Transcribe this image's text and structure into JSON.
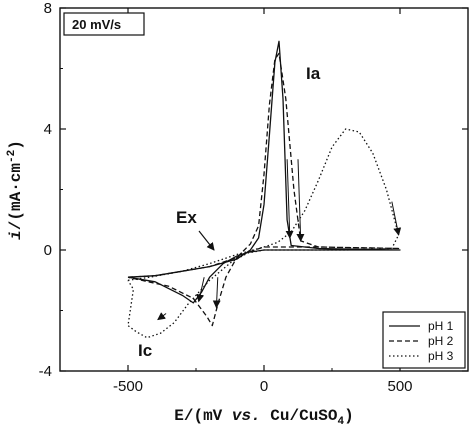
{
  "chart_data": {
    "type": "line",
    "scan_rate_label": "20 mV/s",
    "xlabel": {
      "prefix": "E/(mV ",
      "vs": "vs.",
      "suffix": " Cu/CuSO",
      "sub": "4",
      "close": ")"
    },
    "ylabel": {
      "italic": "i",
      "main": "/(mA·cm",
      "sup": "-2",
      "close": ")"
    },
    "xlim": [
      -750,
      750
    ],
    "ylim": [
      -4,
      8
    ],
    "xticks": [
      -500,
      0,
      500
    ],
    "yticks": [
      -4,
      0,
      4,
      8
    ],
    "xtick_labels": [
      "-500",
      "0",
      "500"
    ],
    "ytick_labels": [
      "-4",
      "0",
      "4",
      "8"
    ],
    "grid": false,
    "legend_position": "bottom-right",
    "annotations": [
      {
        "text": "Ia",
        "x": 120,
        "y": 5.8
      },
      {
        "text": "Ex",
        "x": -165,
        "y": 0.9
      },
      {
        "text": "Ic",
        "x": -400,
        "y": -3.4
      }
    ],
    "series": [
      {
        "name": "pH 1",
        "style": "solid",
        "forward": [
          [
            -500,
            -0.9
          ],
          [
            -400,
            -0.85
          ],
          [
            -300,
            -0.7
          ],
          [
            -200,
            -0.55
          ],
          [
            -100,
            -0.3
          ],
          [
            -50,
            0.0
          ],
          [
            -20,
            0.4
          ],
          [
            0,
            1.5
          ],
          [
            20,
            3.8
          ],
          [
            40,
            6.2
          ],
          [
            55,
            6.9
          ],
          [
            70,
            5.0
          ],
          [
            85,
            1.0
          ],
          [
            100,
            0.15
          ],
          [
            200,
            0.05
          ],
          [
            500,
            0.0
          ]
        ],
        "reverse": [
          [
            500,
            0.0
          ],
          [
            200,
            0.0
          ],
          [
            0,
            0.0
          ],
          [
            -60,
            -0.08
          ],
          [
            -100,
            -0.2
          ],
          [
            -150,
            -0.45
          ],
          [
            -200,
            -0.9
          ],
          [
            -230,
            -1.4
          ],
          [
            -260,
            -1.75
          ],
          [
            -300,
            -1.5
          ],
          [
            -400,
            -1.05
          ],
          [
            -500,
            -0.9
          ]
        ]
      },
      {
        "name": "pH 2",
        "style": "dashed",
        "forward": [
          [
            -500,
            -0.9
          ],
          [
            -400,
            -0.85
          ],
          [
            -300,
            -0.7
          ],
          [
            -200,
            -0.55
          ],
          [
            -100,
            -0.25
          ],
          [
            -50,
            0.2
          ],
          [
            -20,
            0.8
          ],
          [
            0,
            2.5
          ],
          [
            20,
            4.8
          ],
          [
            40,
            6.3
          ],
          [
            55,
            6.5
          ],
          [
            80,
            5.0
          ],
          [
            110,
            2.0
          ],
          [
            135,
            0.3
          ],
          [
            200,
            0.1
          ],
          [
            500,
            0.05
          ]
        ],
        "reverse": [
          [
            500,
            0.05
          ],
          [
            200,
            0.1
          ],
          [
            0,
            0.1
          ],
          [
            -60,
            -0.08
          ],
          [
            -100,
            -0.25
          ],
          [
            -140,
            -0.9
          ],
          [
            -170,
            -1.8
          ],
          [
            -190,
            -2.5
          ],
          [
            -210,
            -2.2
          ],
          [
            -260,
            -1.6
          ],
          [
            -350,
            -1.2
          ],
          [
            -450,
            -1.0
          ],
          [
            -500,
            -0.9
          ]
        ]
      },
      {
        "name": "pH 3",
        "style": "dotted",
        "forward": [
          [
            -500,
            -1.0
          ],
          [
            -420,
            -0.9
          ],
          [
            -300,
            -0.7
          ],
          [
            -200,
            -0.45
          ],
          [
            -100,
            -0.15
          ],
          [
            0,
            0.1
          ],
          [
            50,
            0.25
          ],
          [
            100,
            0.6
          ],
          [
            150,
            1.3
          ],
          [
            200,
            2.3
          ],
          [
            250,
            3.4
          ],
          [
            300,
            4.0
          ],
          [
            350,
            3.9
          ],
          [
            400,
            3.2
          ],
          [
            450,
            2.0
          ],
          [
            495,
            0.5
          ]
        ],
        "reverse": [
          [
            495,
            0.5
          ],
          [
            470,
            0.05
          ],
          [
            300,
            0.0
          ],
          [
            100,
            0.0
          ],
          [
            0,
            0.0
          ],
          [
            -60,
            -0.1
          ],
          [
            -120,
            -0.4
          ],
          [
            -200,
            -1.0
          ],
          [
            -280,
            -1.8
          ],
          [
            -330,
            -2.4
          ],
          [
            -380,
            -2.75
          ],
          [
            -430,
            -2.9
          ],
          [
            -470,
            -2.7
          ],
          [
            -500,
            -2.5
          ],
          [
            -490,
            -1.9
          ],
          [
            -480,
            -1.3
          ],
          [
            -500,
            -1.0
          ]
        ]
      }
    ]
  }
}
